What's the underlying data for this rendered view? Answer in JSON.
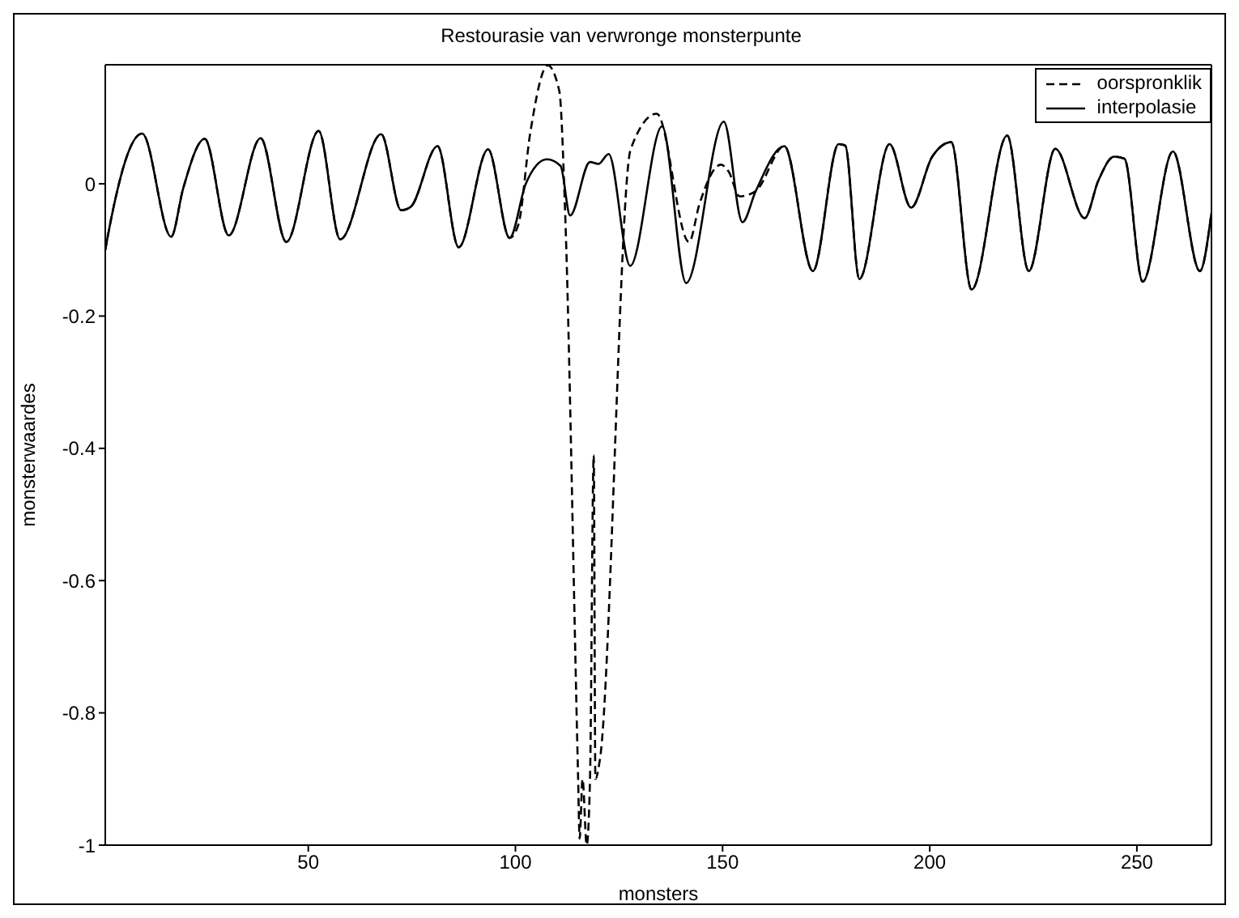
{
  "chart_data": {
    "type": "line",
    "title": "Restourasie van verwronge monsterpunte",
    "xlabel": "monsters",
    "ylabel": "monsterwaardes",
    "xlim": [
      1,
      268
    ],
    "xticks": [
      50,
      100,
      150,
      200,
      250
    ],
    "ylim": [
      -1,
      0.18
    ],
    "yticks": [
      -1,
      -0.8,
      -0.6,
      -0.4,
      -0.2,
      0
    ],
    "grid": false,
    "legend": "top right",
    "marker": "none",
    "series": [
      {
        "name": "oorspronklik",
        "color": "#000000",
        "line_style": "dashed",
        "x": [
          1,
          1.7,
          9.9,
          16.9,
          19.8,
          25,
          30.8,
          38.5,
          44.7,
          52.5,
          57.7,
          67.6,
          72.4,
          74.7,
          81.2,
          86.3,
          93.4,
          98.6,
          100.7,
          103.6,
          107.8,
          110.6,
          112,
          115.1,
          115.5,
          116.2,
          117.2,
          118,
          118.9,
          119.3,
          120.4,
          127.8,
          134.1,
          141.9,
          144.4,
          149.6,
          151.5,
          154.1,
          158,
          164.9,
          171.8,
          178,
          179.6,
          183,
          190.3,
          195.5,
          200.6,
          205.2,
          210.1,
          218.7,
          223.9,
          230.3,
          237.4,
          240.7,
          244.5,
          247,
          251.4,
          258.7,
          265.2,
          268
        ],
        "values": [
          -0.1,
          -0.076,
          0.076,
          -0.08,
          -0.007,
          0.068,
          -0.078,
          0.069,
          -0.088,
          0.08,
          -0.084,
          0.075,
          -0.04,
          -0.035,
          0.057,
          -0.096,
          0.052,
          -0.082,
          -0.062,
          0.078,
          0.179,
          0.14,
          -0.044,
          -0.89,
          -0.99,
          -0.9,
          -1.0,
          -0.9,
          -0.41,
          -0.9,
          -0.87,
          0.052,
          0.106,
          -0.088,
          -0.031,
          0.029,
          0.018,
          -0.019,
          -0.011,
          0.057,
          -0.132,
          0.06,
          0.058,
          -0.144,
          0.06,
          -0.036,
          0.041,
          0.063,
          -0.16,
          0.073,
          -0.132,
          0.053,
          -0.052,
          0.005,
          0.041,
          0.038,
          -0.148,
          0.049,
          -0.132,
          -0.044
        ]
      },
      {
        "name": "interpolasie",
        "color": "#000000",
        "line_style": "solid",
        "x": [
          1,
          1.7,
          9.9,
          16.9,
          19.8,
          25,
          30.8,
          38.5,
          44.7,
          52.5,
          57.7,
          67.6,
          72.4,
          74.7,
          81.2,
          86.3,
          93.4,
          98.6,
          102.5,
          107.6,
          110.9,
          113.2,
          118,
          120,
          122.5,
          127.7,
          135.4,
          141.2,
          150.3,
          154.8,
          158,
          164.9,
          171.8,
          178,
          179.6,
          183,
          190.3,
          195.5,
          200.6,
          205.2,
          210.1,
          218.7,
          223.9,
          230.3,
          237.4,
          240.7,
          244.5,
          247,
          251.4,
          258.7,
          265.2,
          268
        ],
        "values": [
          -0.1,
          -0.076,
          0.076,
          -0.08,
          -0.007,
          0.068,
          -0.078,
          0.069,
          -0.088,
          0.08,
          -0.084,
          0.075,
          -0.04,
          -0.035,
          0.057,
          -0.096,
          0.052,
          -0.082,
          0,
          0.037,
          0.027,
          -0.048,
          0.033,
          0.03,
          0.045,
          -0.124,
          0.087,
          -0.15,
          0.094,
          -0.058,
          -0.011,
          0.057,
          -0.132,
          0.06,
          0.058,
          -0.144,
          0.06,
          -0.036,
          0.041,
          0.063,
          -0.16,
          0.073,
          -0.132,
          0.053,
          -0.052,
          0.005,
          0.041,
          0.038,
          -0.148,
          0.049,
          -0.132,
          -0.044
        ]
      }
    ]
  }
}
